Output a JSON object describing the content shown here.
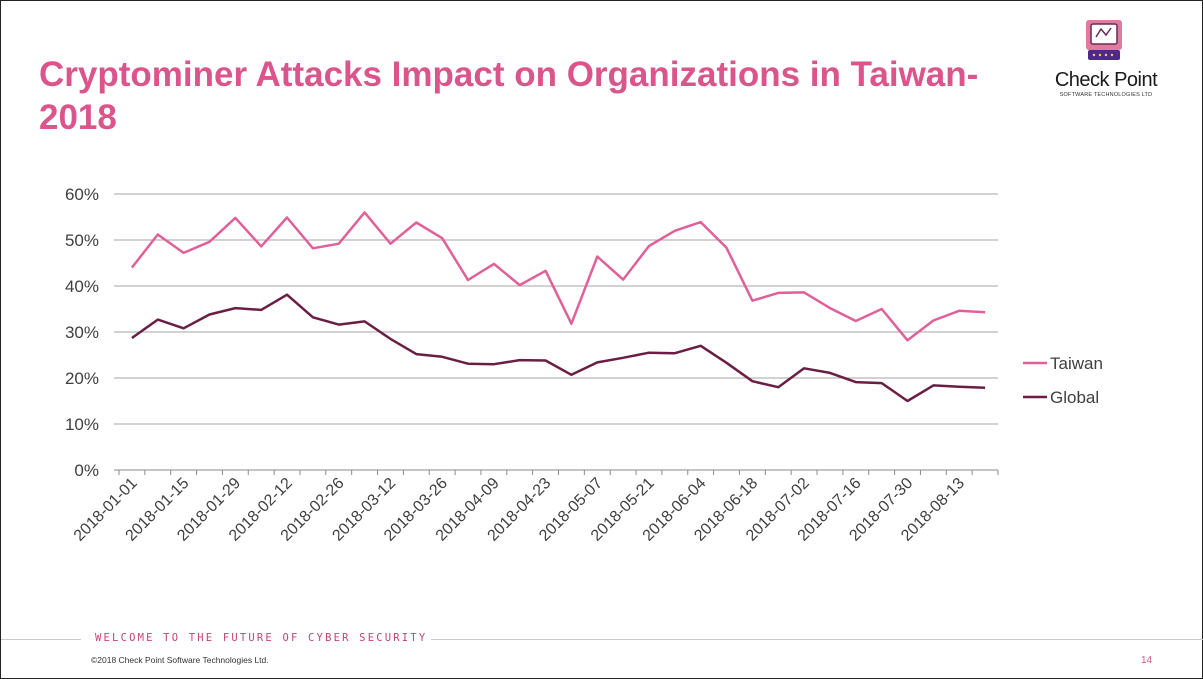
{
  "slide": {
    "title": "Cryptominer Attacks Impact on Organizations in Taiwan- 2018",
    "logo_name": "Check Point",
    "logo_tagline": "SOFTWARE TECHNOLOGIES LTD",
    "footer_tagline": "WELCOME TO THE FUTURE OF CYBER SECURITY",
    "copyright": "©2018 Check Point Software Technologies Ltd.",
    "page_number": "14"
  },
  "chart_data": {
    "type": "line",
    "ylim": [
      0,
      60
    ],
    "y_ticks": [
      "0%",
      "10%",
      "20%",
      "30%",
      "40%",
      "50%",
      "60%"
    ],
    "x_tick_labels": [
      "2018-01-01",
      "2018-01-15",
      "2018-01-29",
      "2018-02-12",
      "2018-02-26",
      "2018-03-12",
      "2018-03-26",
      "2018-04-09",
      "2018-04-23",
      "2018-05-07",
      "2018-05-21",
      "2018-06-04",
      "2018-06-18",
      "2018-07-02",
      "2018-07-16",
      "2018-07-30",
      "2018-08-13"
    ],
    "x": [
      "2018-01-01",
      "2018-01-08",
      "2018-01-15",
      "2018-01-22",
      "2018-01-29",
      "2018-02-05",
      "2018-02-12",
      "2018-02-19",
      "2018-02-26",
      "2018-03-05",
      "2018-03-12",
      "2018-03-19",
      "2018-03-26",
      "2018-04-02",
      "2018-04-09",
      "2018-04-16",
      "2018-04-23",
      "2018-04-30",
      "2018-05-07",
      "2018-05-14",
      "2018-05-21",
      "2018-05-28",
      "2018-06-04",
      "2018-06-11",
      "2018-06-18",
      "2018-06-25",
      "2018-07-02",
      "2018-07-09",
      "2018-07-16",
      "2018-07-23",
      "2018-07-30",
      "2018-08-06",
      "2018-08-13",
      "2018-08-20"
    ],
    "grid": true,
    "legend_position": "right",
    "series": [
      {
        "name": "Taiwan",
        "color": "#e0609a",
        "values": [
          44,
          51.2,
          47.2,
          49.6,
          54.8,
          48.6,
          54.9,
          48.2,
          49.2,
          56,
          49.2,
          53.8,
          50.4,
          41.3,
          44.8,
          40.2,
          43.3,
          31.8,
          46.4,
          41.4,
          48.7,
          52,
          53.9,
          48.3,
          36.8,
          38.5,
          38.6,
          35.2,
          32.4,
          35,
          28.2,
          32.5,
          34.6,
          34.3
        ]
      },
      {
        "name": "Global",
        "color": "#6b1e44",
        "values": [
          28.7,
          32.7,
          30.8,
          33.8,
          35.2,
          34.8,
          38.1,
          33.2,
          31.6,
          32.3,
          28.5,
          25.2,
          24.6,
          23.1,
          23,
          23.9,
          23.8,
          20.7,
          23.4,
          24.4,
          25.5,
          25.4,
          27,
          23.3,
          19.3,
          18,
          22.1,
          21.1,
          19.1,
          18.9,
          15,
          18.4,
          18.1,
          17.9
        ]
      }
    ]
  }
}
